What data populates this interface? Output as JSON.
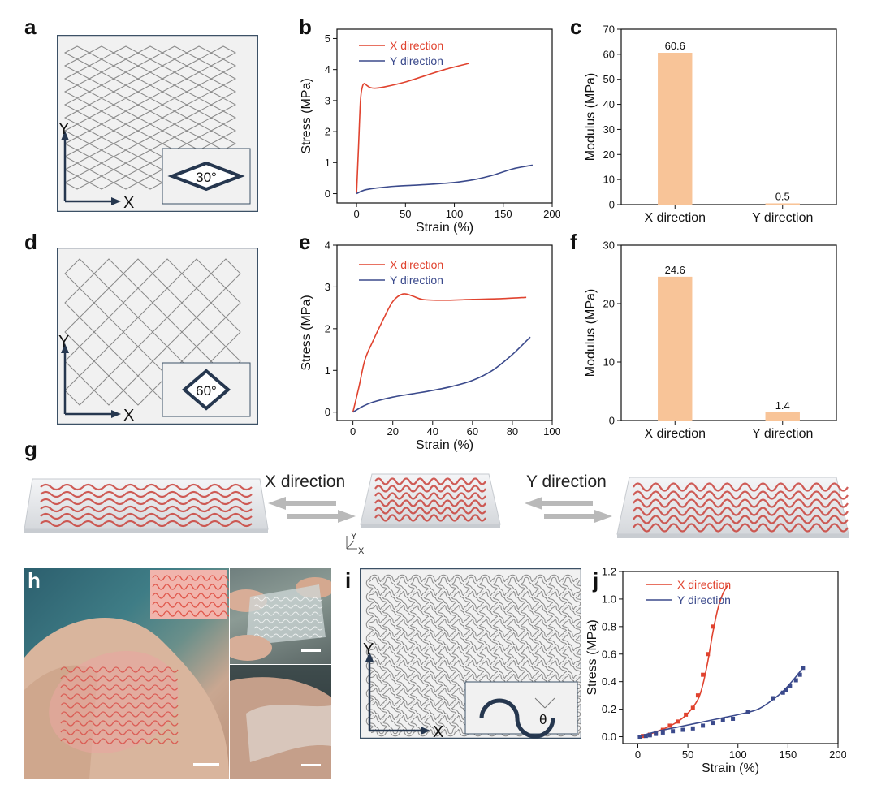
{
  "panels": {
    "a": {
      "label": "a",
      "angle": "30°",
      "axis_x": "X",
      "axis_y": "Y"
    },
    "d": {
      "label": "d",
      "angle": "60°",
      "axis_x": "X",
      "axis_y": "Y"
    },
    "i": {
      "label": "i",
      "angle": "θ",
      "axis_x": "X",
      "axis_y": "Y"
    },
    "g": {
      "label": "g",
      "x_dir": "X direction",
      "y_dir": "Y direction",
      "axis_x": "X",
      "axis_y": "Y"
    },
    "h": {
      "label": "h"
    },
    "b": {
      "label": "b"
    },
    "c": {
      "label": "c"
    },
    "e": {
      "label": "e"
    },
    "f": {
      "label": "f"
    },
    "j": {
      "label": "j"
    }
  },
  "colors": {
    "x_series": "#e0432f",
    "y_series": "#3b4a8c",
    "bar": "#f8c498",
    "frame": "#3c5166"
  },
  "chart_data": [
    {
      "id": "b",
      "type": "line",
      "xlabel": "Strain (%)",
      "ylabel": "Stress (MPa)",
      "xlim": [
        -20,
        200
      ],
      "ylim": [
        -0.3,
        5.3
      ],
      "xticks": [
        0,
        50,
        100,
        150,
        200
      ],
      "yticks": [
        0,
        1,
        2,
        3,
        4,
        5
      ],
      "series": [
        {
          "name": "X direction",
          "color": "#e0432f",
          "x": [
            0,
            2,
            4,
            6,
            8,
            10,
            14,
            20,
            30,
            50,
            70,
            90,
            115
          ],
          "y": [
            0,
            1.5,
            3.0,
            3.45,
            3.55,
            3.5,
            3.42,
            3.4,
            3.45,
            3.6,
            3.8,
            4.0,
            4.2
          ]
        },
        {
          "name": "Y direction",
          "color": "#3b4a8c",
          "x": [
            0,
            5,
            10,
            20,
            40,
            70,
            100,
            120,
            140,
            160,
            180
          ],
          "y": [
            0,
            0.08,
            0.13,
            0.18,
            0.24,
            0.29,
            0.36,
            0.45,
            0.6,
            0.8,
            0.92
          ]
        }
      ]
    },
    {
      "id": "c",
      "type": "bar",
      "ylabel": "Modulus (MPa)",
      "categories": [
        "X direction",
        "Y direction"
      ],
      "values": [
        60.6,
        0.5
      ],
      "value_labels": [
        "60.6",
        "0.5"
      ],
      "ylim": [
        0,
        70
      ],
      "yticks": [
        0,
        10,
        20,
        30,
        40,
        50,
        60,
        70
      ]
    },
    {
      "id": "e",
      "type": "line",
      "xlabel": "Strain (%)",
      "ylabel": "Stress (MPa)",
      "xlim": [
        -8,
        100
      ],
      "ylim": [
        -0.2,
        4
      ],
      "xticks": [
        0,
        20,
        40,
        60,
        80,
        100
      ],
      "yticks": [
        0,
        1,
        2,
        3,
        4
      ],
      "series": [
        {
          "name": "X direction",
          "color": "#e0432f",
          "x": [
            0,
            3,
            6,
            10,
            15,
            20,
            25,
            30,
            35,
            45,
            60,
            75,
            87
          ],
          "y": [
            0,
            0.6,
            1.25,
            1.7,
            2.2,
            2.65,
            2.83,
            2.78,
            2.7,
            2.68,
            2.7,
            2.72,
            2.75
          ]
        },
        {
          "name": "Y direction",
          "color": "#3b4a8c",
          "x": [
            0,
            5,
            10,
            20,
            30,
            40,
            50,
            60,
            70,
            80,
            89
          ],
          "y": [
            0,
            0.14,
            0.24,
            0.36,
            0.44,
            0.52,
            0.62,
            0.76,
            1.0,
            1.38,
            1.8
          ]
        }
      ]
    },
    {
      "id": "f",
      "type": "bar",
      "ylabel": "Modulus (MPa)",
      "categories": [
        "X direction",
        "Y direction"
      ],
      "values": [
        24.6,
        1.4
      ],
      "value_labels": [
        "24.6",
        "1.4"
      ],
      "ylim": [
        0,
        30
      ],
      "yticks": [
        0,
        10,
        20,
        30
      ]
    },
    {
      "id": "j",
      "type": "line",
      "xlabel": "Strain (%)",
      "ylabel": "Stress (MPa)",
      "xlim": [
        -15,
        200
      ],
      "ylim": [
        -0.05,
        1.2
      ],
      "xticks": [
        0,
        50,
        100,
        150,
        200
      ],
      "yticks": [
        0.0,
        0.2,
        0.4,
        0.6,
        0.8,
        1.0,
        1.2
      ],
      "series": [
        {
          "name": "X direction",
          "color": "#e0432f",
          "x": [
            0,
            10,
            20,
            30,
            40,
            50,
            60,
            65,
            70,
            75,
            80,
            85,
            90
          ],
          "y": [
            0,
            0.015,
            0.04,
            0.07,
            0.11,
            0.17,
            0.27,
            0.38,
            0.55,
            0.76,
            0.93,
            1.04,
            1.1
          ],
          "mx": [
            5,
            12,
            18,
            25,
            32,
            40,
            48,
            55,
            60,
            65,
            70,
            75
          ],
          "my": [
            0.005,
            0.015,
            0.03,
            0.05,
            0.08,
            0.11,
            0.16,
            0.21,
            0.3,
            0.45,
            0.6,
            0.8
          ]
        },
        {
          "name": "Y direction",
          "color": "#3b4a8c",
          "x": [
            0,
            20,
            40,
            60,
            80,
            100,
            120,
            135,
            145,
            155,
            165
          ],
          "y": [
            0,
            0.04,
            0.07,
            0.1,
            0.13,
            0.16,
            0.2,
            0.27,
            0.33,
            0.41,
            0.5
          ],
          "mx": [
            2,
            8,
            12,
            18,
            25,
            35,
            45,
            55,
            65,
            75,
            85,
            95,
            110,
            135,
            145,
            148,
            152,
            158,
            162,
            165
          ],
          "my": [
            0.0,
            0.005,
            0.01,
            0.02,
            0.03,
            0.04,
            0.05,
            0.06,
            0.08,
            0.1,
            0.12,
            0.13,
            0.18,
            0.28,
            0.32,
            0.34,
            0.37,
            0.41,
            0.45,
            0.5
          ]
        }
      ]
    }
  ]
}
